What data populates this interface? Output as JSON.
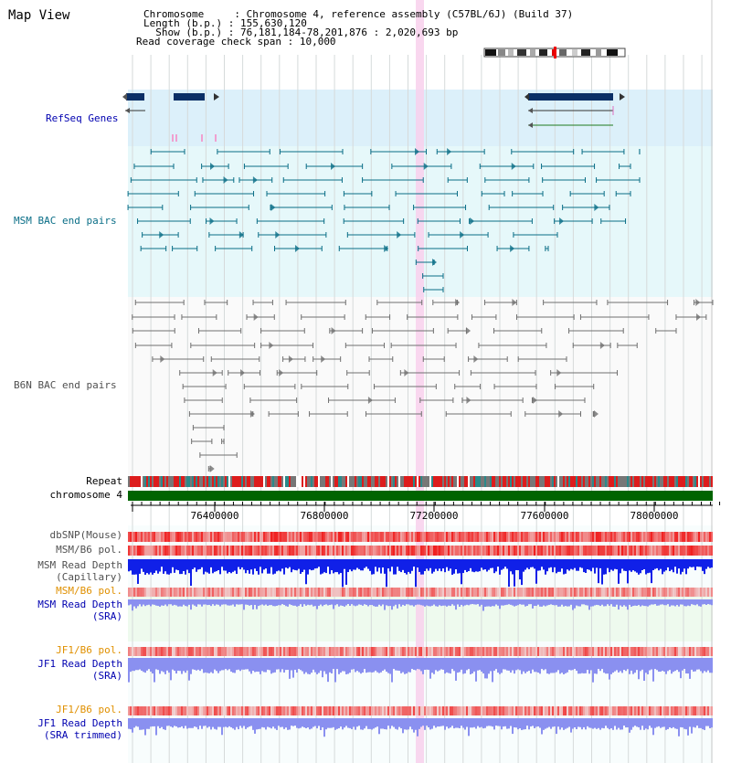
{
  "header": {
    "title": "Map View",
    "lines": [
      {
        "k": "Chromosome     ",
        "v": ": Chromosome 4, reference assembly (C57BL/6J) (Build 37)"
      },
      {
        "k": "Length (b.p.) ",
        "v": ": 155,630,120"
      },
      {
        "k": "  Show (b.p.) ",
        "v": ": 76,181,184-78,201,876 : 2,020,693 bp"
      },
      {
        "k": "Read coverage check span ",
        "v": ": 10,000"
      }
    ]
  },
  "tracks": {
    "refseq": "RefSeq Genes",
    "msm_bac": "MSM BAC end pairs",
    "b6n_bac": "B6N BAC end pairs",
    "repeat": "Repeat",
    "chromosome": "chromosome 4",
    "dbsnp": "dbSNP(Mouse)",
    "msm_b6_pol_1": "MSM/B6 pol.",
    "msm_depth_cap_1": "MSM Read Depth",
    "msm_depth_cap_2": "(Capillary)",
    "msm_b6_pol_2": "MSM/B6 pol.",
    "msm_depth_sra_1": "MSM Read Depth",
    "msm_depth_sra_2": "(SRA)",
    "jf1_b6_pol_1": "JF1/B6 pol.",
    "jf1_depth_sra_1": "JF1 Read Depth",
    "jf1_depth_sra_2": "(SRA)",
    "jf1_b6_pol_2": "JF1/B6 pol.",
    "jf1_depth_trim_1": "JF1 Read Depth",
    "jf1_depth_trim_2": "(SRA trimmed)"
  },
  "ruler": {
    "labels": [
      "76400000",
      "76800000",
      "77200000",
      "77600000",
      "78000000"
    ]
  },
  "colors": {
    "refseq_bg": "#dcf0fa",
    "msm_bg": "#e6f8fa",
    "b6n_bg": "#fafafa",
    "msm_bac": "#0a6e87",
    "b6n_bac": "#707070",
    "highlight": "#f8d0ec",
    "chromosome": "#006400",
    "depth_cap": "#1020e8",
    "depth_sra": "#8a90f0",
    "label_blue": "#0000b0",
    "label_orange": "#e09000",
    "label_teal": "#0a6e87",
    "label_gray": "#505050"
  }
}
